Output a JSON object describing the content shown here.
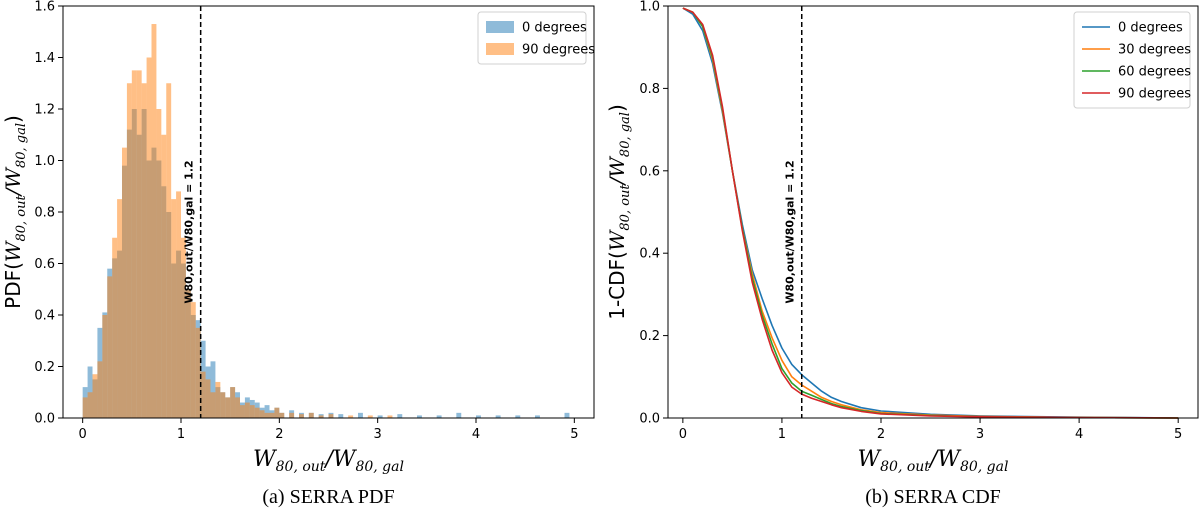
{
  "chart_data": [
    {
      "type": "bar",
      "subtype": "histogram",
      "caption": "(a) SERRA PDF",
      "ylabel": "PDF(W80,out/W80,gal)",
      "xlabel": "W80,out/W80,gal",
      "xlim": [
        -0.2,
        5.2
      ],
      "ylim": [
        0,
        1.6
      ],
      "xticks": [
        "0",
        "1",
        "2",
        "3",
        "4",
        "5"
      ],
      "yticks": [
        "0.0",
        "0.2",
        "0.4",
        "0.6",
        "0.8",
        "1.0",
        "1.2",
        "1.4",
        "1.6"
      ],
      "legend_position": "top-right",
      "bin_width": 0.05,
      "vline": {
        "x": 1.2,
        "label": "W80,out/W80,gal = 1.2"
      },
      "series": [
        {
          "name": "0 degrees",
          "color": "#1f77b4",
          "bins": [
            [
              0.0,
              0.12
            ],
            [
              0.05,
              0.2
            ],
            [
              0.1,
              0.15
            ],
            [
              0.15,
              0.35
            ],
            [
              0.2,
              0.41
            ],
            [
              0.25,
              0.58
            ],
            [
              0.3,
              0.62
            ],
            [
              0.35,
              0.65
            ],
            [
              0.4,
              0.98
            ],
            [
              0.45,
              1.12
            ],
            [
              0.5,
              1.2
            ],
            [
              0.55,
              1.1
            ],
            [
              0.6,
              1.2
            ],
            [
              0.65,
              1.0
            ],
            [
              0.7,
              1.05
            ],
            [
              0.75,
              1.0
            ],
            [
              0.8,
              0.9
            ],
            [
              0.85,
              0.8
            ],
            [
              0.9,
              0.6
            ],
            [
              0.95,
              0.65
            ],
            [
              1.0,
              0.6
            ],
            [
              1.05,
              0.5
            ],
            [
              1.1,
              0.4
            ],
            [
              1.15,
              0.38
            ],
            [
              1.2,
              0.3
            ],
            [
              1.25,
              0.2
            ],
            [
              1.3,
              0.22
            ],
            [
              1.35,
              0.12
            ],
            [
              1.4,
              0.1
            ],
            [
              1.45,
              0.08
            ],
            [
              1.5,
              0.12
            ],
            [
              1.55,
              0.1
            ],
            [
              1.6,
              0.06
            ],
            [
              1.65,
              0.08
            ],
            [
              1.7,
              0.07
            ],
            [
              1.75,
              0.06
            ],
            [
              1.8,
              0.04
            ],
            [
              1.85,
              0.05
            ],
            [
              1.9,
              0.03
            ],
            [
              1.95,
              0.04
            ],
            [
              2.0,
              0.02
            ],
            [
              2.1,
              0.03
            ],
            [
              2.2,
              0.02
            ],
            [
              2.3,
              0.02
            ],
            [
              2.4,
              0.015
            ],
            [
              2.5,
              0.02
            ],
            [
              2.6,
              0.015
            ],
            [
              2.8,
              0.02
            ],
            [
              3.0,
              0.01
            ],
            [
              3.2,
              0.015
            ],
            [
              3.4,
              0.01
            ],
            [
              3.6,
              0.01
            ],
            [
              3.8,
              0.02
            ],
            [
              4.0,
              0.01
            ],
            [
              4.2,
              0.01
            ],
            [
              4.4,
              0.01
            ],
            [
              4.6,
              0.01
            ],
            [
              4.9,
              0.02
            ]
          ]
        },
        {
          "name": "90 degrees",
          "color": "#ff7f0e",
          "bins": [
            [
              0.0,
              0.08
            ],
            [
              0.05,
              0.1
            ],
            [
              0.1,
              0.17
            ],
            [
              0.15,
              0.22
            ],
            [
              0.2,
              0.4
            ],
            [
              0.25,
              0.55
            ],
            [
              0.3,
              0.7
            ],
            [
              0.35,
              0.85
            ],
            [
              0.4,
              1.05
            ],
            [
              0.45,
              1.3
            ],
            [
              0.5,
              1.35
            ],
            [
              0.55,
              1.35
            ],
            [
              0.6,
              1.3
            ],
            [
              0.65,
              1.4
            ],
            [
              0.7,
              1.53
            ],
            [
              0.75,
              1.2
            ],
            [
              0.8,
              1.1
            ],
            [
              0.85,
              1.3
            ],
            [
              0.9,
              0.85
            ],
            [
              0.95,
              0.88
            ],
            [
              1.0,
              0.7
            ],
            [
              1.05,
              0.5
            ],
            [
              1.1,
              0.45
            ],
            [
              1.15,
              0.35
            ],
            [
              1.2,
              0.18
            ],
            [
              1.25,
              0.15
            ],
            [
              1.3,
              0.1
            ],
            [
              1.35,
              0.14
            ],
            [
              1.4,
              0.1
            ],
            [
              1.45,
              0.08
            ],
            [
              1.5,
              0.12
            ],
            [
              1.55,
              0.08
            ],
            [
              1.6,
              0.05
            ],
            [
              1.65,
              0.06
            ],
            [
              1.7,
              0.05
            ],
            [
              1.75,
              0.04
            ],
            [
              1.8,
              0.03
            ],
            [
              1.85,
              0.02
            ],
            [
              1.9,
              0.02
            ],
            [
              1.95,
              0.04
            ],
            [
              2.0,
              0.02
            ],
            [
              2.1,
              0.02
            ],
            [
              2.2,
              0.015
            ],
            [
              2.3,
              0.02
            ],
            [
              2.4,
              0.01
            ],
            [
              2.5,
              0.015
            ],
            [
              2.7,
              0.01
            ],
            [
              2.9,
              0.01
            ],
            [
              3.1,
              0.01
            ]
          ]
        }
      ]
    },
    {
      "type": "line",
      "caption": "(b) SERRA CDF",
      "ylabel": "1-CDF(W80,out/W80,gal)",
      "xlabel": "W80,out/W80,gal",
      "xlim": [
        -0.15,
        5.2
      ],
      "ylim": [
        0,
        1.0
      ],
      "xticks": [
        "0",
        "1",
        "2",
        "3",
        "4",
        "5"
      ],
      "yticks": [
        "0.0",
        "0.2",
        "0.4",
        "0.6",
        "0.8",
        "1.0"
      ],
      "legend_position": "top-right",
      "vline": {
        "x": 1.2,
        "label": "W80,out/W80,gal = 1.2"
      },
      "x": [
        0.0,
        0.1,
        0.2,
        0.3,
        0.4,
        0.5,
        0.6,
        0.7,
        0.8,
        0.9,
        1.0,
        1.1,
        1.2,
        1.3,
        1.4,
        1.5,
        1.6,
        1.8,
        2.0,
        2.5,
        3.0,
        4.0,
        5.0
      ],
      "series": [
        {
          "name": "0 degrees",
          "color": "#1f77b4",
          "values": [
            0.995,
            0.98,
            0.94,
            0.86,
            0.74,
            0.6,
            0.47,
            0.36,
            0.29,
            0.225,
            0.17,
            0.13,
            0.105,
            0.085,
            0.065,
            0.05,
            0.04,
            0.025,
            0.017,
            0.009,
            0.005,
            0.002,
            0.0
          ]
        },
        {
          "name": "30 degrees",
          "color": "#ff7f0e",
          "values": [
            0.995,
            0.985,
            0.95,
            0.87,
            0.745,
            0.6,
            0.46,
            0.35,
            0.26,
            0.195,
            0.14,
            0.1,
            0.08,
            0.065,
            0.05,
            0.04,
            0.032,
            0.02,
            0.013,
            0.007,
            0.004,
            0.001,
            0.0
          ]
        },
        {
          "name": "60 degrees",
          "color": "#2ca02c",
          "values": [
            0.995,
            0.985,
            0.95,
            0.875,
            0.75,
            0.6,
            0.46,
            0.34,
            0.25,
            0.18,
            0.12,
            0.085,
            0.065,
            0.055,
            0.045,
            0.035,
            0.028,
            0.018,
            0.011,
            0.006,
            0.003,
            0.001,
            0.0
          ]
        },
        {
          "name": "90 degrees",
          "color": "#d62728",
          "values": [
            0.995,
            0.985,
            0.955,
            0.88,
            0.755,
            0.6,
            0.455,
            0.33,
            0.24,
            0.165,
            0.11,
            0.075,
            0.058,
            0.048,
            0.04,
            0.032,
            0.025,
            0.016,
            0.01,
            0.005,
            0.003,
            0.001,
            0.0
          ]
        }
      ]
    }
  ]
}
